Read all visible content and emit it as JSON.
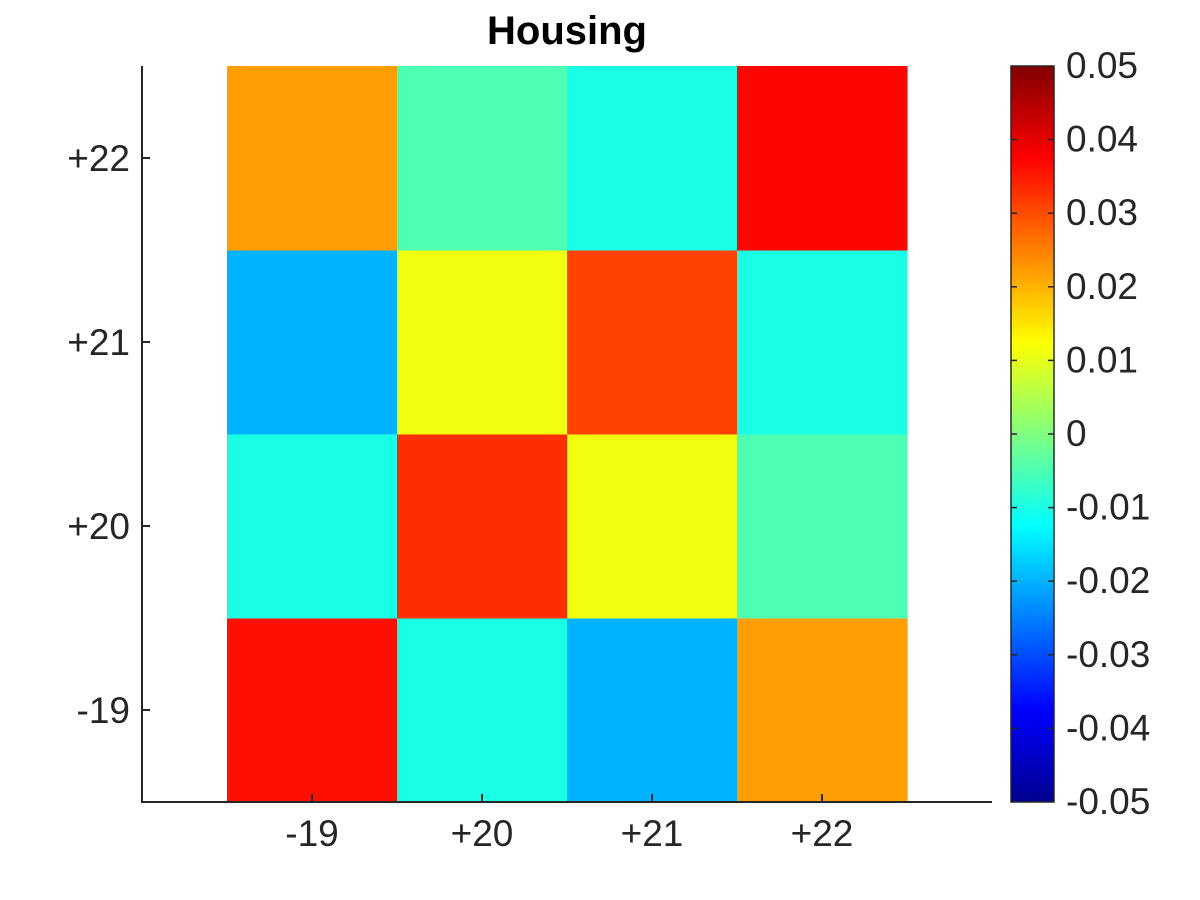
{
  "chart_data": {
    "type": "heatmap",
    "title": "Housing",
    "xlabel": "",
    "ylabel": "",
    "x_categories": [
      "-19",
      "+20",
      "+21",
      "+22"
    ],
    "y_categories": [
      "-19",
      "+20",
      "+21",
      "+22"
    ],
    "values": [
      [
        0.036,
        -0.01,
        -0.02,
        0.022
      ],
      [
        -0.01,
        0.033,
        0.011,
        -0.005
      ],
      [
        -0.02,
        0.011,
        0.031,
        -0.01
      ],
      [
        0.022,
        -0.005,
        -0.01,
        0.037
      ]
    ],
    "values_note_order": "rows listed bottom-to-top matching y_categories; columns left-to-right matching x_categories",
    "colorbar": {
      "colormap": "jet",
      "min": -0.05,
      "max": 0.05,
      "tick_labels": [
        "0.05",
        "0.04",
        "0.03",
        "0.02",
        "0.01",
        "0",
        "-0.01",
        "-0.02",
        "-0.03",
        "-0.04",
        "-0.05"
      ]
    },
    "grid": false
  }
}
